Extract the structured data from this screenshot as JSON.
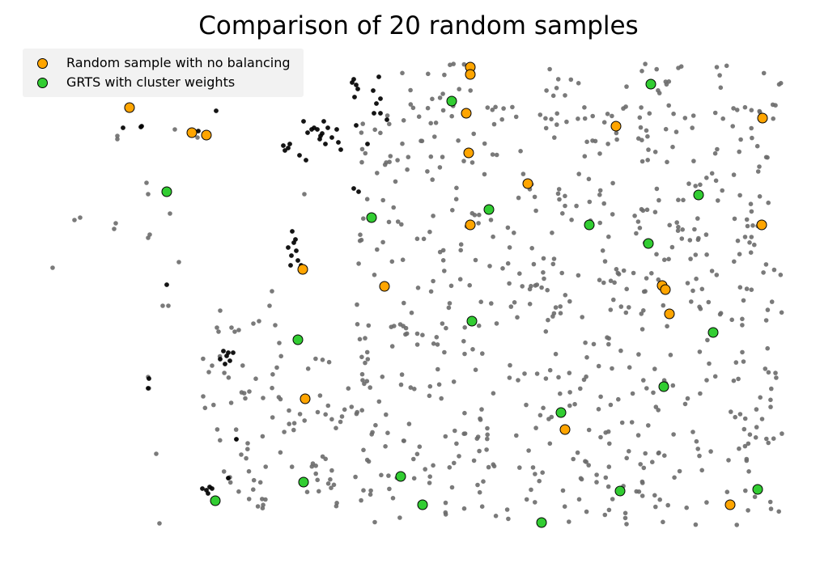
{
  "chart_data": {
    "type": "scatter",
    "title": "Comparison of 20 random samples",
    "xlabel": "",
    "ylabel": "",
    "axes_visible": false,
    "grid": false,
    "legend_position": "top-left",
    "colors": {
      "background_points": "#6b6b6b",
      "cluster_points": "#000000",
      "random_sample": "#ffa500",
      "grts_sample": "#32cd32"
    },
    "series": [
      {
        "name": "Random sample with no balancing",
        "color": "#ffa500",
        "points": [
          [
            160,
            133
          ],
          [
            237,
            164
          ],
          [
            255,
            167
          ],
          [
            581,
            83
          ],
          [
            581,
            92
          ],
          [
            576,
            140
          ],
          [
            579,
            189
          ],
          [
            761,
            156
          ],
          [
            942,
            146
          ],
          [
            652,
            227
          ],
          [
            581,
            278
          ],
          [
            941,
            278
          ],
          [
            374,
            333
          ],
          [
            475,
            354
          ],
          [
            818,
            353
          ],
          [
            822,
            358
          ],
          [
            827,
            388
          ],
          [
            377,
            493
          ],
          [
            698,
            531
          ],
          [
            902,
            624
          ]
        ]
      },
      {
        "name": "GRTS with cluster weights",
        "color": "#32cd32",
        "points": [
          [
            804,
            104
          ],
          [
            558,
            125
          ],
          [
            206,
            237
          ],
          [
            863,
            241
          ],
          [
            459,
            269
          ],
          [
            604,
            259
          ],
          [
            728,
            278
          ],
          [
            801,
            301
          ],
          [
            583,
            397
          ],
          [
            881,
            411
          ],
          [
            368,
            420
          ],
          [
            820,
            478
          ],
          [
            693,
            510
          ],
          [
            495,
            589
          ],
          [
            375,
            596
          ],
          [
            766,
            607
          ],
          [
            936,
            605
          ],
          [
            266,
            619
          ],
          [
            522,
            624
          ],
          [
            669,
            646
          ]
        ]
      }
    ]
  },
  "legend": {
    "entries": [
      {
        "label": "Random sample with no balancing",
        "color": "#ffa500"
      },
      {
        "label": "GRTS with cluster weights",
        "color": "#32cd32"
      }
    ]
  }
}
